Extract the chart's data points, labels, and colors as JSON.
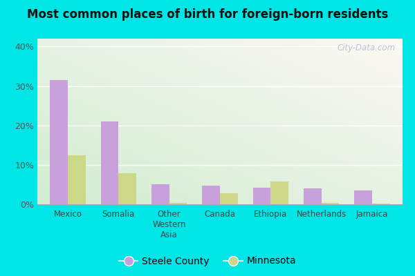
{
  "title": "Most common places of birth for foreign-born residents",
  "categories": [
    "Mexico",
    "Somalia",
    "Other\nWestern\nAsia",
    "Canada",
    "Ethiopia",
    "Netherlands",
    "Jamaica"
  ],
  "steele_county": [
    31.5,
    21.0,
    5.0,
    4.8,
    4.2,
    4.0,
    3.5
  ],
  "minnesota": [
    12.5,
    7.8,
    0.4,
    2.8,
    5.8,
    0.3,
    0.1
  ],
  "steele_color": "#c8a0dc",
  "minnesota_color": "#ccd888",
  "yticks": [
    0,
    10,
    20,
    30,
    40
  ],
  "ylim": [
    0,
    42
  ],
  "outer_bg": "#00e5e5",
  "plot_bg_topleft": "#d8eed8",
  "plot_bg_bottomright": "#f8f4f4",
  "legend_labels": [
    "Steele County",
    "Minnesota"
  ],
  "watermark": "City-Data.com",
  "bar_width": 0.35
}
